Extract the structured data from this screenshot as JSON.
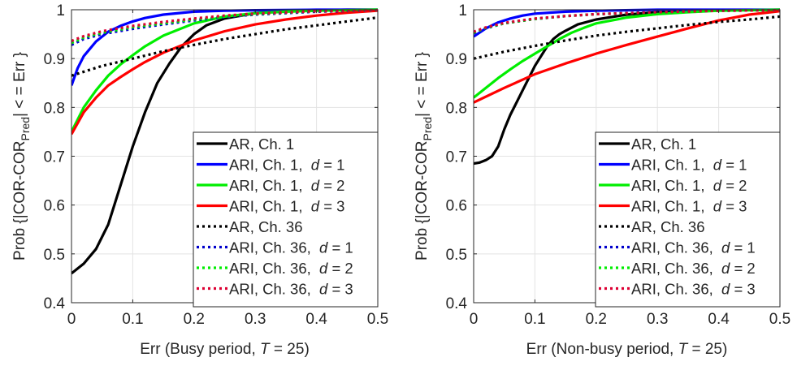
{
  "chart_data": [
    {
      "type": "line",
      "xlabel": "Err (Busy period,  T = 25)",
      "xlabel_parts": [
        "Err (Busy period,  ",
        "T",
        " = 25)"
      ],
      "ylabel": "Prob {|COR-COR_Pred| <= Err }",
      "xlim": [
        0,
        0.5
      ],
      "ylim": [
        0.4,
        1
      ],
      "xticks": [
        "0",
        "0.1",
        "0.2",
        "0.3",
        "0.4",
        "0.5"
      ],
      "yticks": [
        "0.4",
        "0.5",
        "0.6",
        "0.7",
        "0.8",
        "0.9",
        "1"
      ],
      "grid": true,
      "legend_position": "bottom-right",
      "series": [
        {
          "name": "AR, Ch. 1",
          "color": "#000000",
          "style": "solid",
          "x": [
            0,
            0.02,
            0.04,
            0.06,
            0.08,
            0.1,
            0.12,
            0.14,
            0.16,
            0.18,
            0.2,
            0.22,
            0.25,
            0.3,
            0.35,
            0.4,
            0.45,
            0.5
          ],
          "y": [
            0.46,
            0.48,
            0.51,
            0.56,
            0.64,
            0.72,
            0.79,
            0.85,
            0.89,
            0.925,
            0.95,
            0.968,
            0.982,
            0.993,
            0.997,
            0.999,
            1.0,
            1.0
          ]
        },
        {
          "name": "ARI, Ch. 1,  d = 1",
          "color": "#0000ff",
          "style": "solid",
          "x": [
            0,
            0.01,
            0.02,
            0.04,
            0.06,
            0.08,
            0.1,
            0.12,
            0.15,
            0.2,
            0.25,
            0.3,
            0.4,
            0.5
          ],
          "y": [
            0.845,
            0.88,
            0.905,
            0.935,
            0.955,
            0.967,
            0.976,
            0.983,
            0.99,
            0.996,
            0.998,
            0.999,
            1.0,
            1.0
          ]
        },
        {
          "name": "ARI, Ch. 1,  d = 2",
          "color": "#00ee00",
          "style": "solid",
          "x": [
            0,
            0.02,
            0.04,
            0.06,
            0.08,
            0.1,
            0.12,
            0.15,
            0.2,
            0.25,
            0.3,
            0.35,
            0.4,
            0.5
          ],
          "y": [
            0.75,
            0.8,
            0.835,
            0.865,
            0.888,
            0.907,
            0.925,
            0.947,
            0.972,
            0.986,
            0.993,
            0.996,
            0.998,
            1.0
          ]
        },
        {
          "name": "ARI, Ch. 1,  d = 3",
          "color": "#ff0000",
          "style": "solid",
          "x": [
            0,
            0.02,
            0.04,
            0.06,
            0.08,
            0.1,
            0.12,
            0.15,
            0.2,
            0.25,
            0.3,
            0.35,
            0.4,
            0.45,
            0.5
          ],
          "y": [
            0.745,
            0.79,
            0.82,
            0.845,
            0.862,
            0.878,
            0.893,
            0.912,
            0.937,
            0.956,
            0.97,
            0.98,
            0.988,
            0.994,
            0.998
          ]
        },
        {
          "name": "AR, Ch. 36",
          "color": "#000000",
          "style": "dotted",
          "x": [
            0,
            0.05,
            0.1,
            0.15,
            0.2,
            0.25,
            0.3,
            0.35,
            0.4,
            0.45,
            0.5
          ],
          "y": [
            0.865,
            0.885,
            0.9,
            0.915,
            0.928,
            0.94,
            0.95,
            0.96,
            0.968,
            0.976,
            0.984
          ]
        },
        {
          "name": "ARI, Ch. 36,  d = 1",
          "color": "#0000cc",
          "style": "dotted",
          "x": [
            0,
            0.02,
            0.05,
            0.1,
            0.15,
            0.2,
            0.25,
            0.3,
            0.4,
            0.5
          ],
          "y": [
            0.928,
            0.94,
            0.95,
            0.961,
            0.97,
            0.978,
            0.985,
            0.99,
            0.996,
            0.999
          ]
        },
        {
          "name": "ARI, Ch. 36,  d = 2",
          "color": "#00ee00",
          "style": "dotted",
          "x": [
            0,
            0.02,
            0.05,
            0.1,
            0.15,
            0.2,
            0.25,
            0.3,
            0.4,
            0.5
          ],
          "y": [
            0.932,
            0.943,
            0.953,
            0.964,
            0.972,
            0.98,
            0.986,
            0.991,
            0.997,
            0.999
          ]
        },
        {
          "name": "ARI, Ch. 36,  d = 3",
          "color": "#dd0033",
          "style": "dotted",
          "x": [
            0,
            0.02,
            0.05,
            0.1,
            0.15,
            0.2,
            0.25,
            0.3,
            0.4,
            0.5
          ],
          "y": [
            0.936,
            0.946,
            0.956,
            0.967,
            0.975,
            0.982,
            0.988,
            0.992,
            0.997,
            0.999
          ]
        }
      ]
    },
    {
      "type": "line",
      "xlabel": "Err (Non-busy period,  T = 25)",
      "xlabel_parts": [
        "Err (Non-busy period,  ",
        "T",
        " = 25)"
      ],
      "ylabel": "Prob {|COR-COR_Pred| <= Err }",
      "xlim": [
        0,
        0.5
      ],
      "ylim": [
        0.4,
        1
      ],
      "xticks": [
        "0",
        "0.1",
        "0.2",
        "0.3",
        "0.4",
        "0.5"
      ],
      "yticks": [
        "0.4",
        "0.5",
        "0.6",
        "0.7",
        "0.8",
        "0.9",
        "1"
      ],
      "grid": true,
      "legend_position": "bottom-right",
      "series": [
        {
          "name": "AR, Ch. 1",
          "color": "#000000",
          "style": "solid",
          "x": [
            0,
            0.01,
            0.02,
            0.03,
            0.04,
            0.05,
            0.06,
            0.07,
            0.08,
            0.09,
            0.1,
            0.11,
            0.12,
            0.13,
            0.14,
            0.15,
            0.17,
            0.2,
            0.25,
            0.3,
            0.4,
            0.5
          ],
          "y": [
            0.685,
            0.687,
            0.692,
            0.7,
            0.72,
            0.755,
            0.785,
            0.81,
            0.835,
            0.86,
            0.885,
            0.905,
            0.925,
            0.94,
            0.95,
            0.957,
            0.97,
            0.98,
            0.99,
            0.995,
            0.999,
            1.0
          ]
        },
        {
          "name": "ARI, Ch. 1,  d = 1",
          "color": "#0000ff",
          "style": "solid",
          "x": [
            0,
            0.02,
            0.04,
            0.06,
            0.08,
            0.1,
            0.15,
            0.2,
            0.3,
            0.4,
            0.5
          ],
          "y": [
            0.945,
            0.962,
            0.974,
            0.982,
            0.988,
            0.992,
            0.996,
            0.998,
            1.0,
            1.0,
            1.0
          ]
        },
        {
          "name": "ARI, Ch. 1,  d = 2",
          "color": "#00ee00",
          "style": "solid",
          "x": [
            0,
            0.02,
            0.04,
            0.06,
            0.08,
            0.1,
            0.12,
            0.14,
            0.16,
            0.18,
            0.2,
            0.25,
            0.3,
            0.35,
            0.4,
            0.5
          ],
          "y": [
            0.82,
            0.84,
            0.86,
            0.878,
            0.895,
            0.91,
            0.925,
            0.94,
            0.953,
            0.963,
            0.972,
            0.984,
            0.991,
            0.995,
            0.998,
            1.0
          ]
        },
        {
          "name": "ARI, Ch. 1,  d = 3",
          "color": "#ff0000",
          "style": "solid",
          "x": [
            0,
            0.05,
            0.1,
            0.15,
            0.2,
            0.25,
            0.3,
            0.35,
            0.4,
            0.45,
            0.5
          ],
          "y": [
            0.81,
            0.84,
            0.868,
            0.89,
            0.91,
            0.928,
            0.945,
            0.962,
            0.978,
            0.99,
            0.997
          ]
        },
        {
          "name": "AR, Ch. 36",
          "color": "#000000",
          "style": "dotted",
          "x": [
            0,
            0.05,
            0.1,
            0.15,
            0.2,
            0.25,
            0.3,
            0.35,
            0.4,
            0.45,
            0.5
          ],
          "y": [
            0.9,
            0.914,
            0.926,
            0.937,
            0.947,
            0.955,
            0.962,
            0.969,
            0.975,
            0.98,
            0.986
          ]
        },
        {
          "name": "ARI, Ch. 36,  d = 1",
          "color": "#0000cc",
          "style": "dotted",
          "x": [
            0,
            0.02,
            0.05,
            0.1,
            0.15,
            0.2,
            0.3,
            0.4,
            0.5
          ],
          "y": [
            0.952,
            0.962,
            0.972,
            0.981,
            0.987,
            0.991,
            0.995,
            0.998,
            0.999
          ]
        },
        {
          "name": "ARI, Ch. 36,  d = 2",
          "color": "#00ee00",
          "style": "dotted",
          "x": [
            0,
            0.02,
            0.05,
            0.1,
            0.15,
            0.2,
            0.3,
            0.4,
            0.5
          ],
          "y": [
            0.953,
            0.963,
            0.972,
            0.981,
            0.987,
            0.991,
            0.995,
            0.998,
            0.999
          ]
        },
        {
          "name": "ARI, Ch. 36,  d = 3",
          "color": "#dd0033",
          "style": "dotted",
          "x": [
            0,
            0.02,
            0.05,
            0.1,
            0.15,
            0.2,
            0.3,
            0.4,
            0.5
          ],
          "y": [
            0.955,
            0.964,
            0.973,
            0.982,
            0.987,
            0.991,
            0.995,
            0.998,
            0.999
          ]
        }
      ]
    }
  ]
}
